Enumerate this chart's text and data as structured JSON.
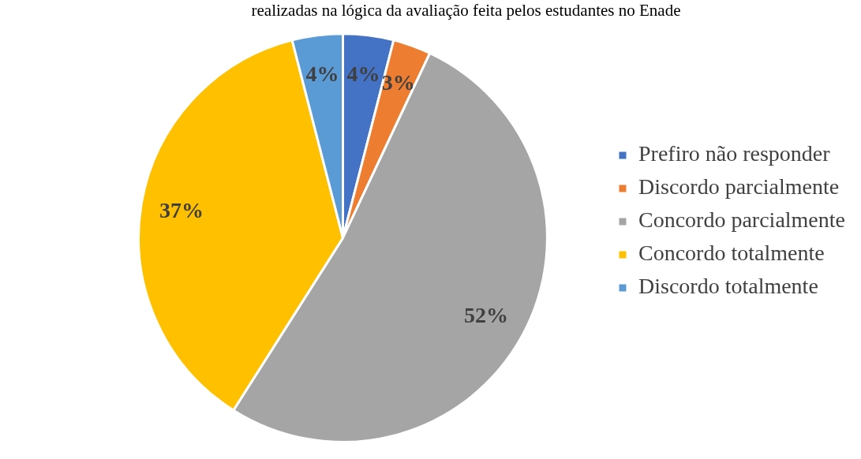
{
  "chart_data": {
    "type": "pie",
    "title": "realizadas na lógica da avaliação feita pelos estudantes no Enade",
    "categories": [
      "Prefiro não responder",
      "Discordo parcialmente",
      "Concordo parcialmente",
      "Concordo totalmente",
      "Discordo totalmente"
    ],
    "values": [
      4,
      3,
      52,
      37,
      4
    ],
    "colors": [
      "#4472c4",
      "#ed7d31",
      "#a5a5a5",
      "#ffc000",
      "#5b9bd5"
    ],
    "value_labels": [
      "4%",
      "3%",
      "52%",
      "37%",
      "4%"
    ],
    "legend": "right"
  }
}
